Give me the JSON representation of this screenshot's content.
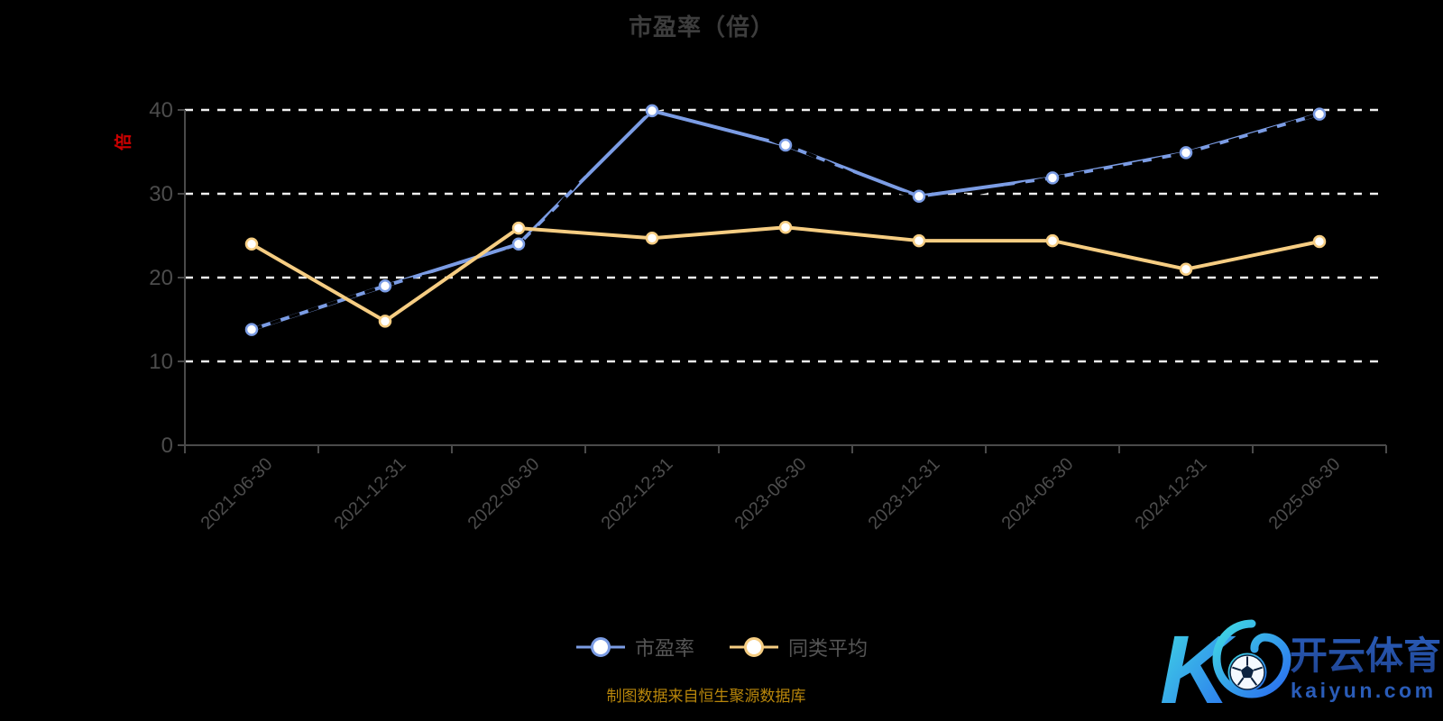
{
  "title": "市盈率（倍）",
  "y_axis_name": "倍",
  "footer": "制图数据来自恒生聚源数据库",
  "legend": [
    {
      "label": "市盈率",
      "color": "#7b9ce4"
    },
    {
      "label": "同类平均",
      "color": "#f6cd82"
    }
  ],
  "watermark": {
    "brand": "开云体育",
    "domain": "kaiyun.com"
  },
  "colors": {
    "background": "#000000",
    "title": "#3d3d3d",
    "axis": "#4a4a4a",
    "tick_label": "#4c4c4c",
    "gridline": "#efefef",
    "series_pe": "#7b9ce4",
    "series_avg": "#f6cd82",
    "marker_fill": "#ffffff",
    "dash_overlay": "#000000",
    "unit_label": "#cc0000",
    "footer": "#b8860b",
    "legend_text": "#555555",
    "brand_gradient_start": "#41dbe3",
    "brand_gradient_end": "#2a6cf0",
    "brand_text_dark": "#1f4492",
    "brand_domain": "#2a5cb8"
  },
  "chart_data": {
    "type": "line",
    "title": "市盈率（倍）",
    "categories": [
      "2021-06-30",
      "2021-12-31",
      "2022-06-30",
      "2022-12-31",
      "2023-06-30",
      "2023-12-31",
      "2024-06-30",
      "2024-12-31",
      "2025-06-30"
    ],
    "series": [
      {
        "name": "市盈率",
        "color": "#7b9ce4",
        "values": [
          13.8,
          19.0,
          24.0,
          39.9,
          35.8,
          29.7,
          31.9,
          34.9,
          39.5
        ]
      },
      {
        "name": "同类平均",
        "color": "#f6cd82",
        "values": [
          24.0,
          14.8,
          25.9,
          24.7,
          26.0,
          24.4,
          24.4,
          21.0,
          24.3
        ]
      }
    ],
    "ylim": [
      0,
      40
    ],
    "yticks": [
      0,
      10,
      20,
      30,
      40
    ],
    "y_axis_name": "倍",
    "grid": "horizontal-dashed-white",
    "legend_position": "bottom-center",
    "xlabel_rotation": 45
  }
}
